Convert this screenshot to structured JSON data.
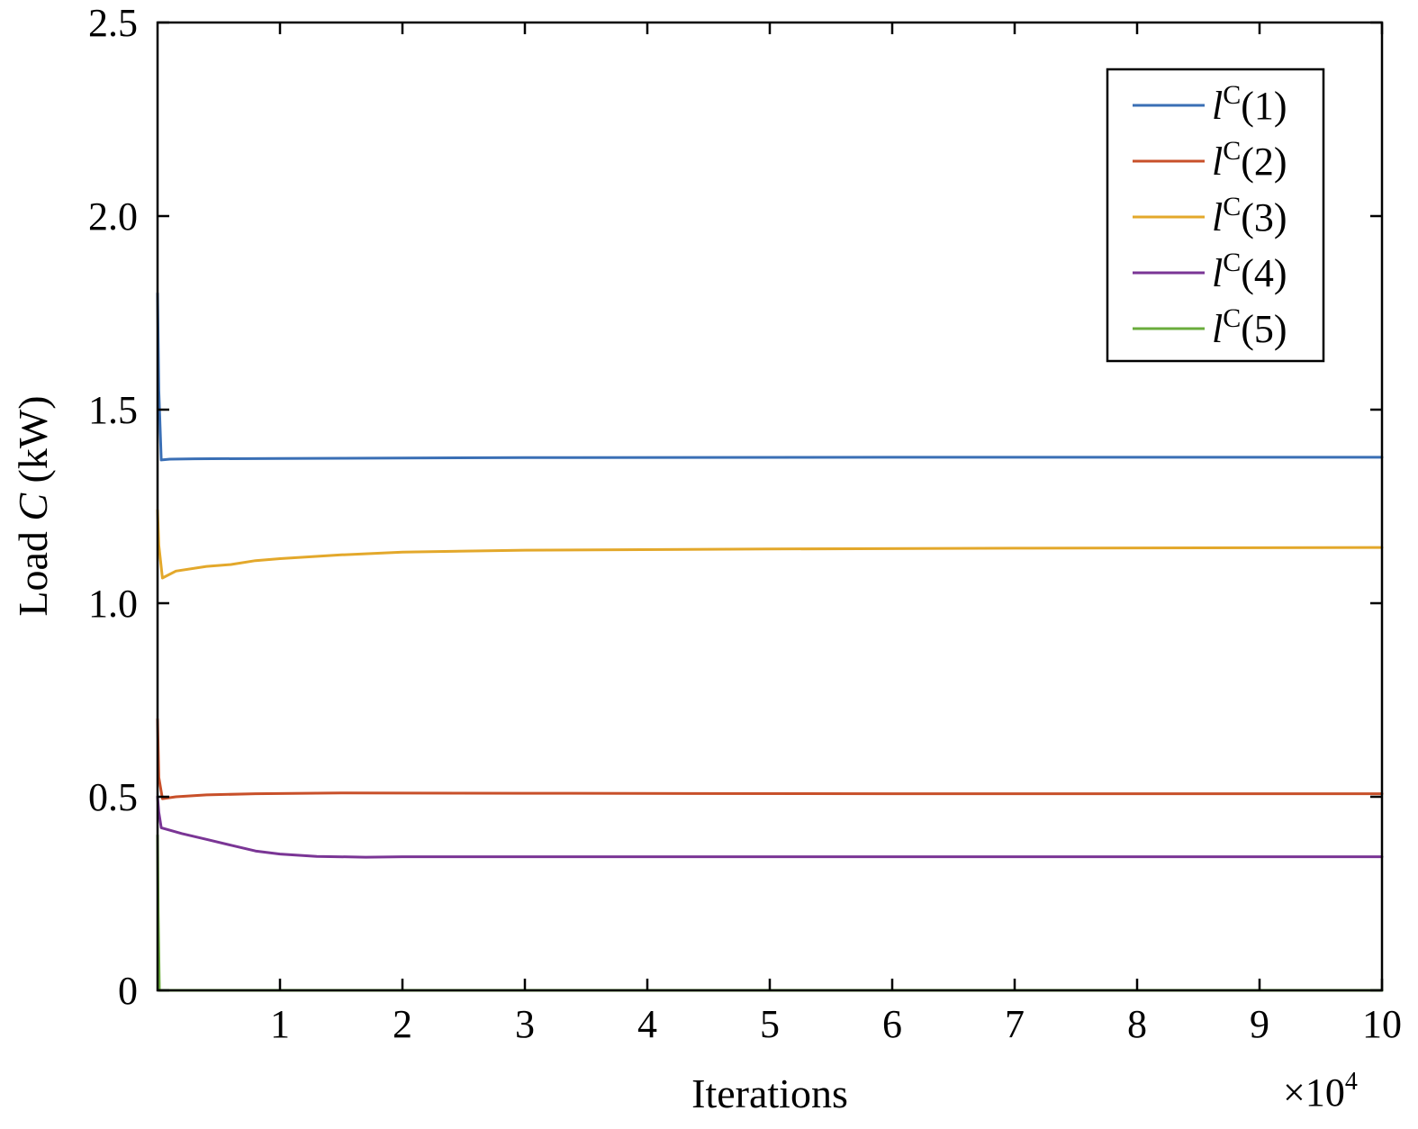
{
  "chart_data": {
    "type": "line",
    "title": "",
    "xlabel": "Iterations",
    "x_multiplier_label": "×10",
    "x_multiplier_exponent": "4",
    "ylabel_prefix": "Load ",
    "ylabel_var": "C",
    "ylabel_suffix": " (kW)",
    "xlim": [
      0,
      100000
    ],
    "ylim": [
      0,
      2.5
    ],
    "x_ticks": [
      10000,
      20000,
      30000,
      40000,
      50000,
      60000,
      70000,
      80000,
      90000,
      100000
    ],
    "x_tick_labels": [
      "1",
      "2",
      "3",
      "4",
      "5",
      "6",
      "7",
      "8",
      "9",
      "10"
    ],
    "y_ticks": [
      0,
      0.5,
      1.0,
      1.5,
      2.0,
      2.5
    ],
    "y_tick_labels": [
      "0",
      "0.5",
      "1.0",
      "1.5",
      "2.0",
      "2.5"
    ],
    "grid": false,
    "legend_position": "top-right",
    "series": [
      {
        "name": "l^C(1)",
        "legend_base": "l",
        "legend_sup": "C",
        "legend_arg": "(1)",
        "color": "#3a6fb5",
        "x": [
          0,
          100,
          300,
          1000,
          3000,
          10000,
          30000,
          60000,
          100000
        ],
        "y": [
          1.8,
          1.55,
          1.37,
          1.372,
          1.373,
          1.374,
          1.376,
          1.377,
          1.377
        ]
      },
      {
        "name": "l^C(2)",
        "legend_base": "l",
        "legend_sup": "C",
        "legend_arg": "(2)",
        "color": "#c8502a",
        "x": [
          0,
          100,
          400,
          1500,
          4000,
          8000,
          15000,
          30000,
          60000,
          100000
        ],
        "y": [
          0.7,
          0.55,
          0.495,
          0.5,
          0.505,
          0.508,
          0.51,
          0.509,
          0.508,
          0.508
        ]
      },
      {
        "name": "l^C(3)",
        "legend_base": "l",
        "legend_sup": "C",
        "legend_arg": "(3)",
        "color": "#e3a82b",
        "x": [
          0,
          100,
          400,
          1500,
          4000,
          6000,
          8000,
          10000,
          15000,
          20000,
          30000,
          50000,
          70000,
          100000
        ],
        "y": [
          1.24,
          1.15,
          1.065,
          1.083,
          1.095,
          1.1,
          1.11,
          1.115,
          1.125,
          1.132,
          1.137,
          1.14,
          1.142,
          1.144
        ]
      },
      {
        "name": "l^C(4)",
        "legend_base": "l",
        "legend_sup": "C",
        "legend_arg": "(4)",
        "color": "#7a3595",
        "x": [
          0,
          100,
          300,
          2000,
          4000,
          6000,
          8000,
          10000,
          13000,
          17000,
          20000,
          30000,
          60000,
          100000
        ],
        "y": [
          0.5,
          0.46,
          0.42,
          0.405,
          0.39,
          0.375,
          0.36,
          0.352,
          0.346,
          0.344,
          0.345,
          0.345,
          0.345,
          0.345
        ]
      },
      {
        "name": "l^C(5)",
        "legend_base": "l",
        "legend_sup": "C",
        "legend_arg": "(5)",
        "color": "#6aac3c",
        "x": [
          0,
          50,
          150,
          300,
          70000,
          100000
        ],
        "y": [
          0.4,
          0.2,
          0.0,
          0.0,
          0.0,
          0.0
        ]
      }
    ]
  }
}
